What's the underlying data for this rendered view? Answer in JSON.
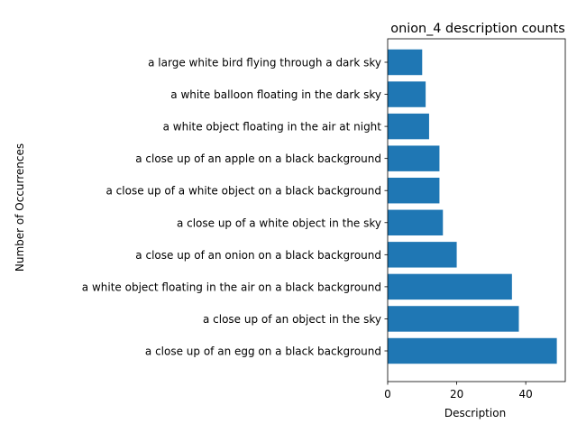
{
  "chart_data": {
    "type": "bar",
    "orientation": "horizontal",
    "title": "onion_4 description counts",
    "xlabel": "Description",
    "ylabel": "Number of Occurrences",
    "categories": [
      "a close up of an egg on a black background",
      "a close up of an object in the sky",
      "a white object floating in the air on a black background",
      "a close up of an onion on a black background",
      "a close up of a white object in the sky",
      "a close up of a white object on a black background",
      "a close up of an apple on a black background",
      "a white object floating in the air at night",
      "a white balloon floating in the dark sky",
      "a large white bird flying through a dark sky"
    ],
    "values": [
      49,
      38,
      36,
      20,
      16,
      15,
      15,
      12,
      11,
      10
    ],
    "xlim": [
      0,
      51.45
    ],
    "xticks": [
      0,
      20,
      40
    ],
    "grid": false,
    "bar_color": "#1f77b4"
  }
}
